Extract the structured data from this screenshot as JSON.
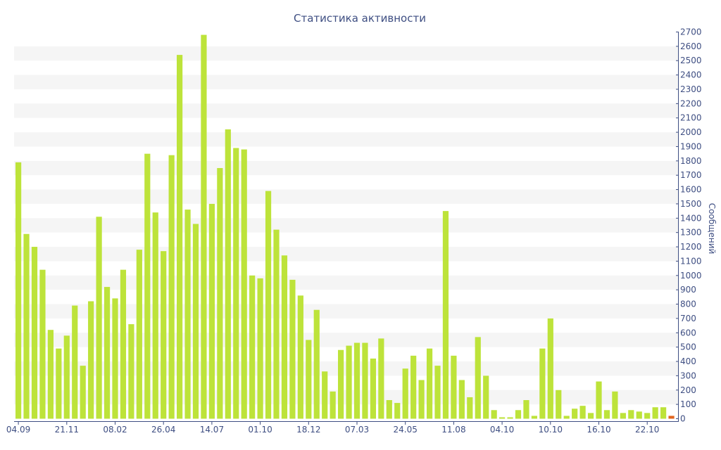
{
  "chart_data": {
    "type": "bar",
    "title": "Статистика активности",
    "xlabel": "",
    "ylabel": "Сообщений",
    "ylim": [
      0,
      2700
    ],
    "y_axis_side": "right",
    "y_ticks": [
      0,
      100,
      200,
      300,
      400,
      500,
      600,
      700,
      800,
      900,
      1000,
      1100,
      1200,
      1300,
      1400,
      1500,
      1600,
      1700,
      1800,
      1900,
      2000,
      2100,
      2200,
      2300,
      2400,
      2500,
      2600,
      2700
    ],
    "x_tick_labels": [
      {
        "index": 0,
        "label": "04.09"
      },
      {
        "index": 6,
        "label": "21.11"
      },
      {
        "index": 12,
        "label": "08.02"
      },
      {
        "index": 18,
        "label": "26.04"
      },
      {
        "index": 24,
        "label": "14.07"
      },
      {
        "index": 30,
        "label": "01.10"
      },
      {
        "index": 36,
        "label": "18.12"
      },
      {
        "index": 42,
        "label": "07.03"
      },
      {
        "index": 48,
        "label": "24.05"
      },
      {
        "index": 54,
        "label": "11.08"
      },
      {
        "index": 60,
        "label": "04.10"
      },
      {
        "index": 66,
        "label": "10.10"
      },
      {
        "index": 72,
        "label": "16.10"
      },
      {
        "index": 78,
        "label": "22.10"
      }
    ],
    "values": [
      1790,
      1290,
      1200,
      1040,
      620,
      490,
      580,
      790,
      370,
      820,
      1410,
      920,
      840,
      1040,
      660,
      1180,
      1850,
      1440,
      1170,
      1840,
      2540,
      1460,
      1360,
      2680,
      1500,
      1750,
      2020,
      1890,
      1880,
      1000,
      980,
      1590,
      1320,
      1140,
      970,
      860,
      550,
      760,
      330,
      190,
      480,
      510,
      530,
      530,
      420,
      560,
      130,
      110,
      350,
      440,
      270,
      490,
      370,
      1450,
      440,
      270,
      150,
      570,
      300,
      60,
      10,
      10,
      60,
      130,
      20,
      490,
      700,
      200,
      20,
      70,
      90,
      40,
      260,
      60,
      190,
      40,
      60,
      50,
      40,
      80,
      80,
      20
    ],
    "grid": "alternating horizontal bands",
    "legend": "none",
    "colors": {
      "bar": "#bde33a",
      "last_bar": "#e0641f",
      "band": "#f5f5f5",
      "axis": "#3e4e82",
      "text": "#3e4e82"
    }
  }
}
